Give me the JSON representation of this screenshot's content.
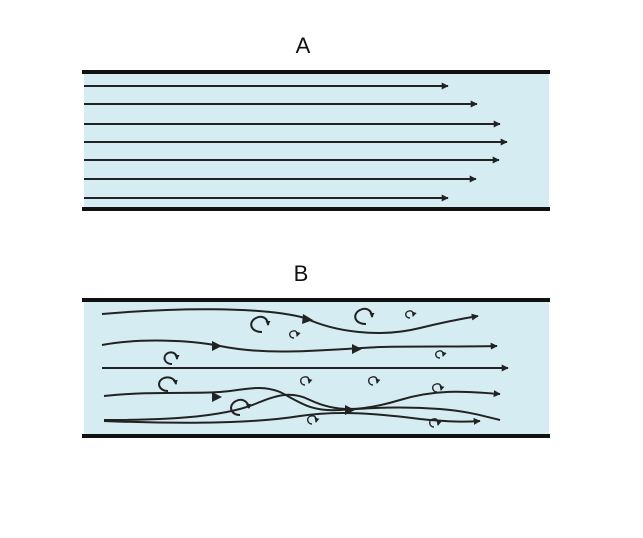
{
  "panels": [
    {
      "id": "A",
      "label": "A"
    },
    {
      "id": "B",
      "label": "B"
    }
  ],
  "colors": {
    "fluid": "#d6ecf3",
    "wall": "#111111",
    "flow_line": "#222222"
  }
}
